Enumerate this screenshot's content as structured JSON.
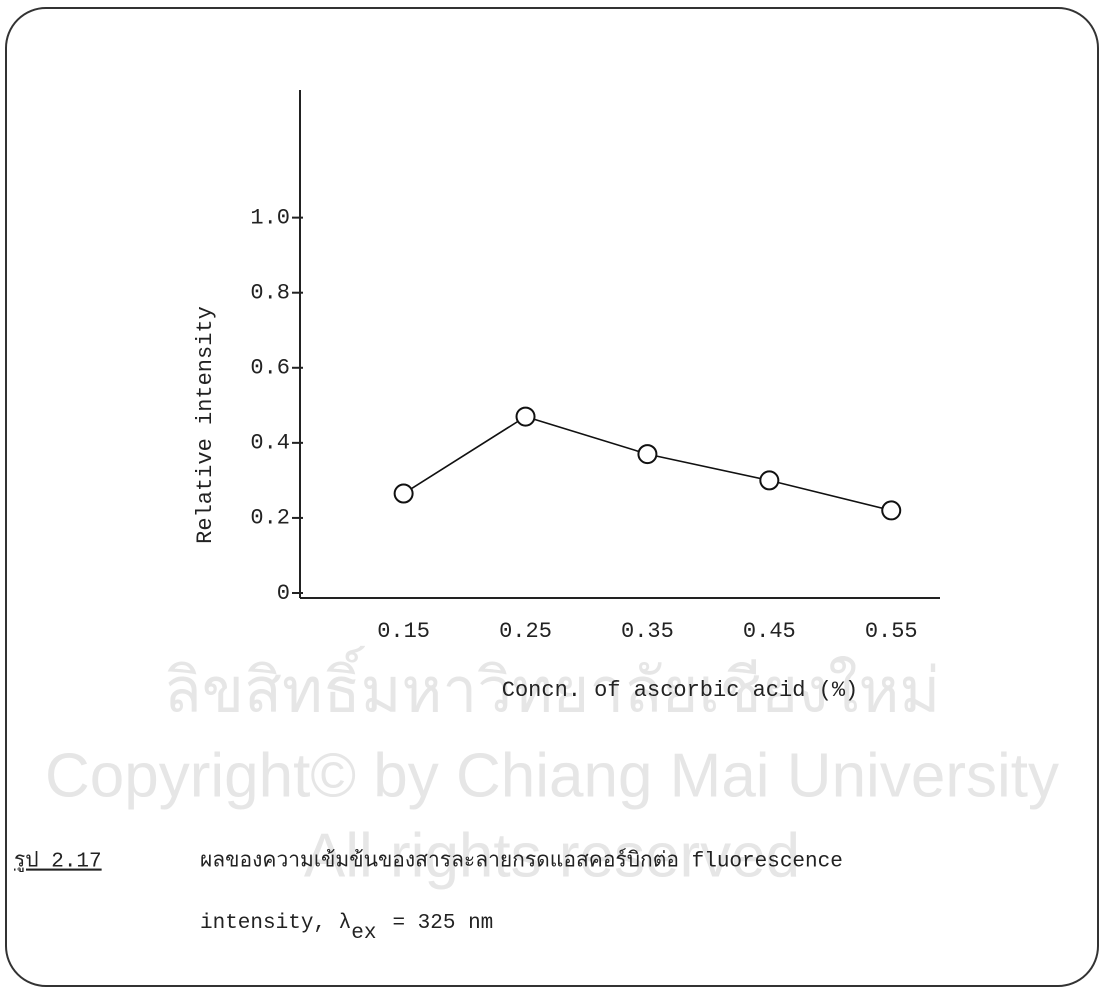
{
  "chart_data": {
    "type": "line",
    "y_label": "Relative intensity",
    "x_label": "Concn. of ascorbic acid (%)",
    "x": [
      0.15,
      0.25,
      0.35,
      0.45,
      0.55
    ],
    "xticks": [
      0.15,
      0.25,
      0.35,
      0.45,
      0.55
    ],
    "xlim": [
      0.065,
      0.59
    ],
    "ylim": [
      0,
      1.34
    ],
    "yticks": [
      0,
      0.2,
      0.4,
      0.6,
      0.8,
      {
        "value": 1,
        "label": "1.0"
      }
    ],
    "series": [
      {
        "color": "#111111",
        "values": [
          0.265,
          0.47,
          0.37,
          0.3,
          0.22
        ]
      }
    ]
  },
  "caption": {
    "label": "รูป  2.17",
    "line1": "ผลของความเข้มข้นของสารละลายกรดแอสคอร์บิกต่อ fluorescence",
    "line2_pre": "intensity,  λ",
    "line2_sub": "ex",
    "line2_post": "=  325 nm"
  },
  "watermark": [
    "ลิขสิทธิ์มหาวิทยาลัยเชียงใหม่",
    "Copyright© by Chiang Mai University",
    "All rights reserved"
  ]
}
